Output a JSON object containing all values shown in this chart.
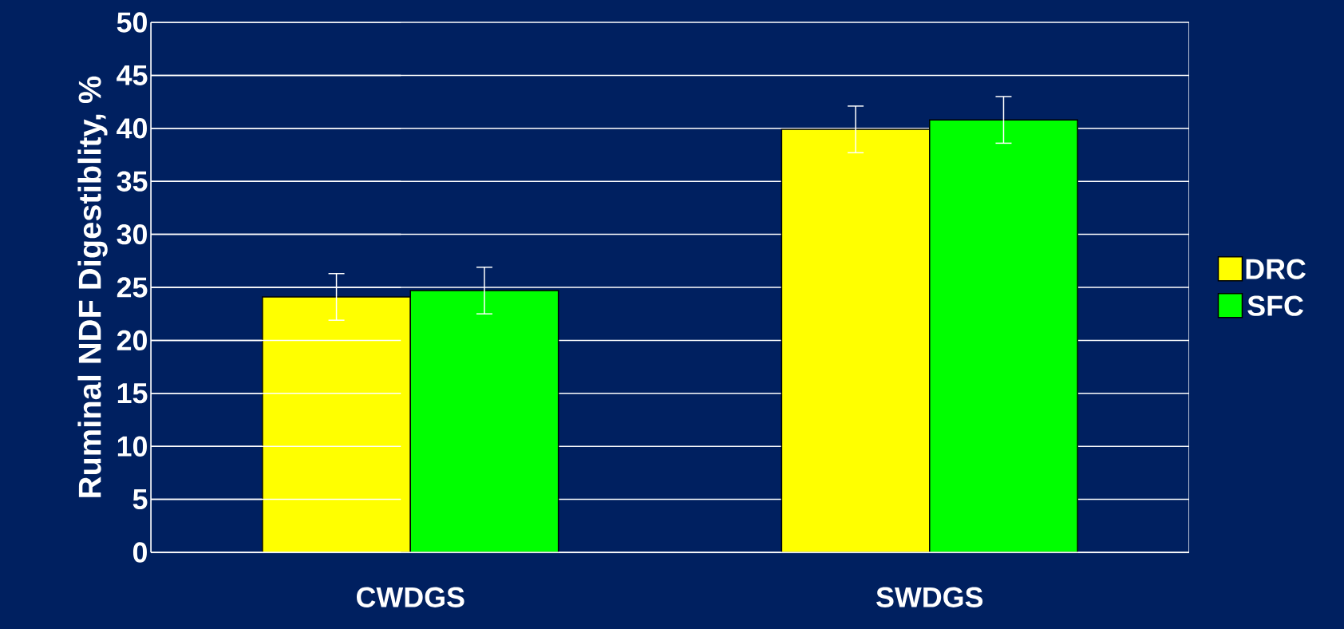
{
  "chart_data": {
    "type": "bar",
    "ylabel": "Ruminal NDF Digestiblity, %",
    "categories": [
      "CWDGS",
      "SWDGS"
    ],
    "series": [
      {
        "name": "DRC",
        "color": "#ffff00",
        "values": [
          24.1,
          39.9
        ],
        "errors": [
          2.2,
          2.2
        ]
      },
      {
        "name": "SFC",
        "color": "#00ff00",
        "values": [
          24.7,
          40.8
        ],
        "errors": [
          2.2,
          2.2
        ]
      }
    ],
    "ylim": [
      0,
      50
    ],
    "yticks": [
      0,
      5,
      10,
      15,
      20,
      25,
      30,
      35,
      40,
      45,
      50
    ],
    "grid": "y",
    "legend": "right"
  }
}
